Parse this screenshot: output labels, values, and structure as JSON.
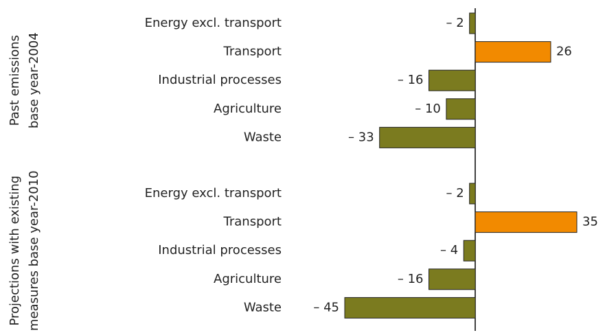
{
  "chart_data": [
    {
      "type": "bar",
      "orientation": "horizontal",
      "label": [
        "Past emissions",
        "base year-2004"
      ],
      "categories": [
        "Energy excl. transport",
        "Transport",
        "Industrial processes",
        "Agriculture",
        "Waste"
      ],
      "values": [
        -2,
        26,
        -16,
        -10,
        -33
      ],
      "value_labels": [
        "– 2",
        "26",
        "– 16",
        "– 10",
        "– 33"
      ],
      "colors": [
        "#7b7b1f",
        "#f28a00",
        "#7b7b1f",
        "#7b7b1f",
        "#7b7b1f"
      ],
      "xlim": [
        -45,
        35
      ]
    },
    {
      "type": "bar",
      "orientation": "horizontal",
      "label": [
        "Projections with existing",
        "measures base year-2010"
      ],
      "categories": [
        "Energy excl. transport",
        "Transport",
        "Industrial processes",
        "Agriculture",
        "Waste"
      ],
      "values": [
        -2,
        35,
        -4,
        -16,
        -45
      ],
      "value_labels": [
        "– 2",
        "35",
        "– 4",
        "– 16",
        "– 45"
      ],
      "colors": [
        "#7b7b1f",
        "#f28a00",
        "#7b7b1f",
        "#7b7b1f",
        "#7b7b1f"
      ],
      "xlim": [
        -45,
        35
      ]
    }
  ]
}
